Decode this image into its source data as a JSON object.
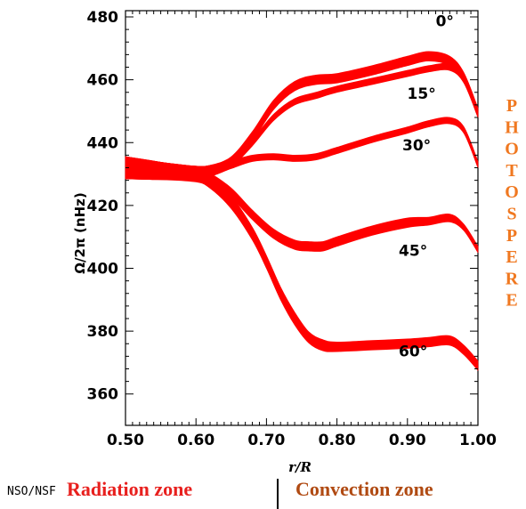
{
  "chart_data": {
    "type": "line",
    "ylabel": "Ω/2π (nHz)",
    "xlabel": "r/R",
    "xlim": [
      0.5,
      1.0
    ],
    "ylim": [
      350,
      482
    ],
    "x_ticks": [
      "0.50",
      "0.60",
      "0.70",
      "0.80",
      "0.90",
      "1.00"
    ],
    "y_ticks": [
      "360",
      "380",
      "400",
      "420",
      "440",
      "460",
      "480"
    ],
    "band_color": "#ff0000",
    "series": [
      {
        "name": "0°",
        "x": [
          0.5,
          0.55,
          0.6,
          0.62,
          0.65,
          0.68,
          0.71,
          0.74,
          0.77,
          0.8,
          0.85,
          0.9,
          0.93,
          0.96,
          0.98,
          1.0
        ],
        "y": [
          432,
          431,
          430.5,
          431,
          434,
          442,
          452,
          458,
          460,
          460.5,
          463,
          466,
          467.5,
          466,
          461,
          450
        ],
        "width": [
          7,
          5.5,
          4,
          3.5,
          3,
          3,
          3,
          3,
          3,
          3,
          3,
          3,
          3,
          3,
          2.5,
          2
        ]
      },
      {
        "name": "15°",
        "x": [
          0.5,
          0.55,
          0.6,
          0.62,
          0.65,
          0.68,
          0.71,
          0.74,
          0.77,
          0.8,
          0.85,
          0.9,
          0.93,
          0.96,
          0.98,
          1.0
        ],
        "y": [
          432,
          431,
          430.5,
          431,
          433.5,
          440,
          448,
          453,
          455,
          457,
          459.5,
          462,
          463.5,
          464,
          460,
          449
        ],
        "width": [
          7,
          5.5,
          4,
          3.5,
          2.5,
          2,
          2,
          2,
          2,
          2,
          2,
          2,
          2,
          2,
          2,
          2
        ]
      },
      {
        "name": "30°",
        "x": [
          0.5,
          0.55,
          0.6,
          0.62,
          0.65,
          0.68,
          0.71,
          0.74,
          0.77,
          0.8,
          0.85,
          0.9,
          0.93,
          0.96,
          0.98,
          1.0
        ],
        "y": [
          432,
          431,
          430.5,
          431,
          433,
          435,
          435.5,
          435,
          435.5,
          437.5,
          441,
          444,
          446,
          447,
          444,
          433
        ],
        "width": [
          7,
          5.5,
          4,
          3.5,
          2.5,
          2,
          2,
          2,
          2,
          2,
          2,
          2,
          2,
          2,
          2,
          2
        ]
      },
      {
        "name": "45°",
        "x": [
          0.5,
          0.55,
          0.6,
          0.62,
          0.65,
          0.68,
          0.71,
          0.74,
          0.76,
          0.78,
          0.8,
          0.85,
          0.9,
          0.93,
          0.96,
          0.98,
          1.0
        ],
        "y": [
          432,
          431,
          430,
          428.5,
          424,
          417,
          411,
          407.5,
          407,
          407,
          408.5,
          412,
          414.5,
          415,
          416,
          413,
          406
        ],
        "width": [
          7,
          5.5,
          4,
          3.5,
          3,
          3,
          3,
          3,
          3,
          3,
          3,
          3,
          3,
          2.5,
          2.5,
          2,
          2
        ]
      },
      {
        "name": "60°",
        "x": [
          0.5,
          0.55,
          0.6,
          0.62,
          0.65,
          0.68,
          0.7,
          0.72,
          0.74,
          0.76,
          0.78,
          0.8,
          0.85,
          0.9,
          0.93,
          0.96,
          0.98,
          1.0
        ],
        "y": [
          432,
          431,
          429.5,
          427.5,
          421,
          411,
          402,
          392,
          384,
          378,
          375.5,
          375,
          375.5,
          376,
          376.5,
          377,
          374,
          369
        ],
        "width": [
          7,
          5.5,
          4,
          4,
          4,
          4,
          4,
          4,
          4,
          3.5,
          3.5,
          3,
          3,
          3,
          3,
          3,
          3,
          3
        ]
      }
    ],
    "label_pos": [
      [
        0.953,
        477
      ],
      [
        0.92,
        454
      ],
      [
        0.913,
        437.5
      ],
      [
        0.908,
        404
      ],
      [
        0.908,
        372
      ]
    ]
  },
  "side_text": "PHOTOSPERE",
  "zones": {
    "radiation": "Radiation zone",
    "convection": "Convection zone",
    "credit": "NSO/NSF"
  }
}
